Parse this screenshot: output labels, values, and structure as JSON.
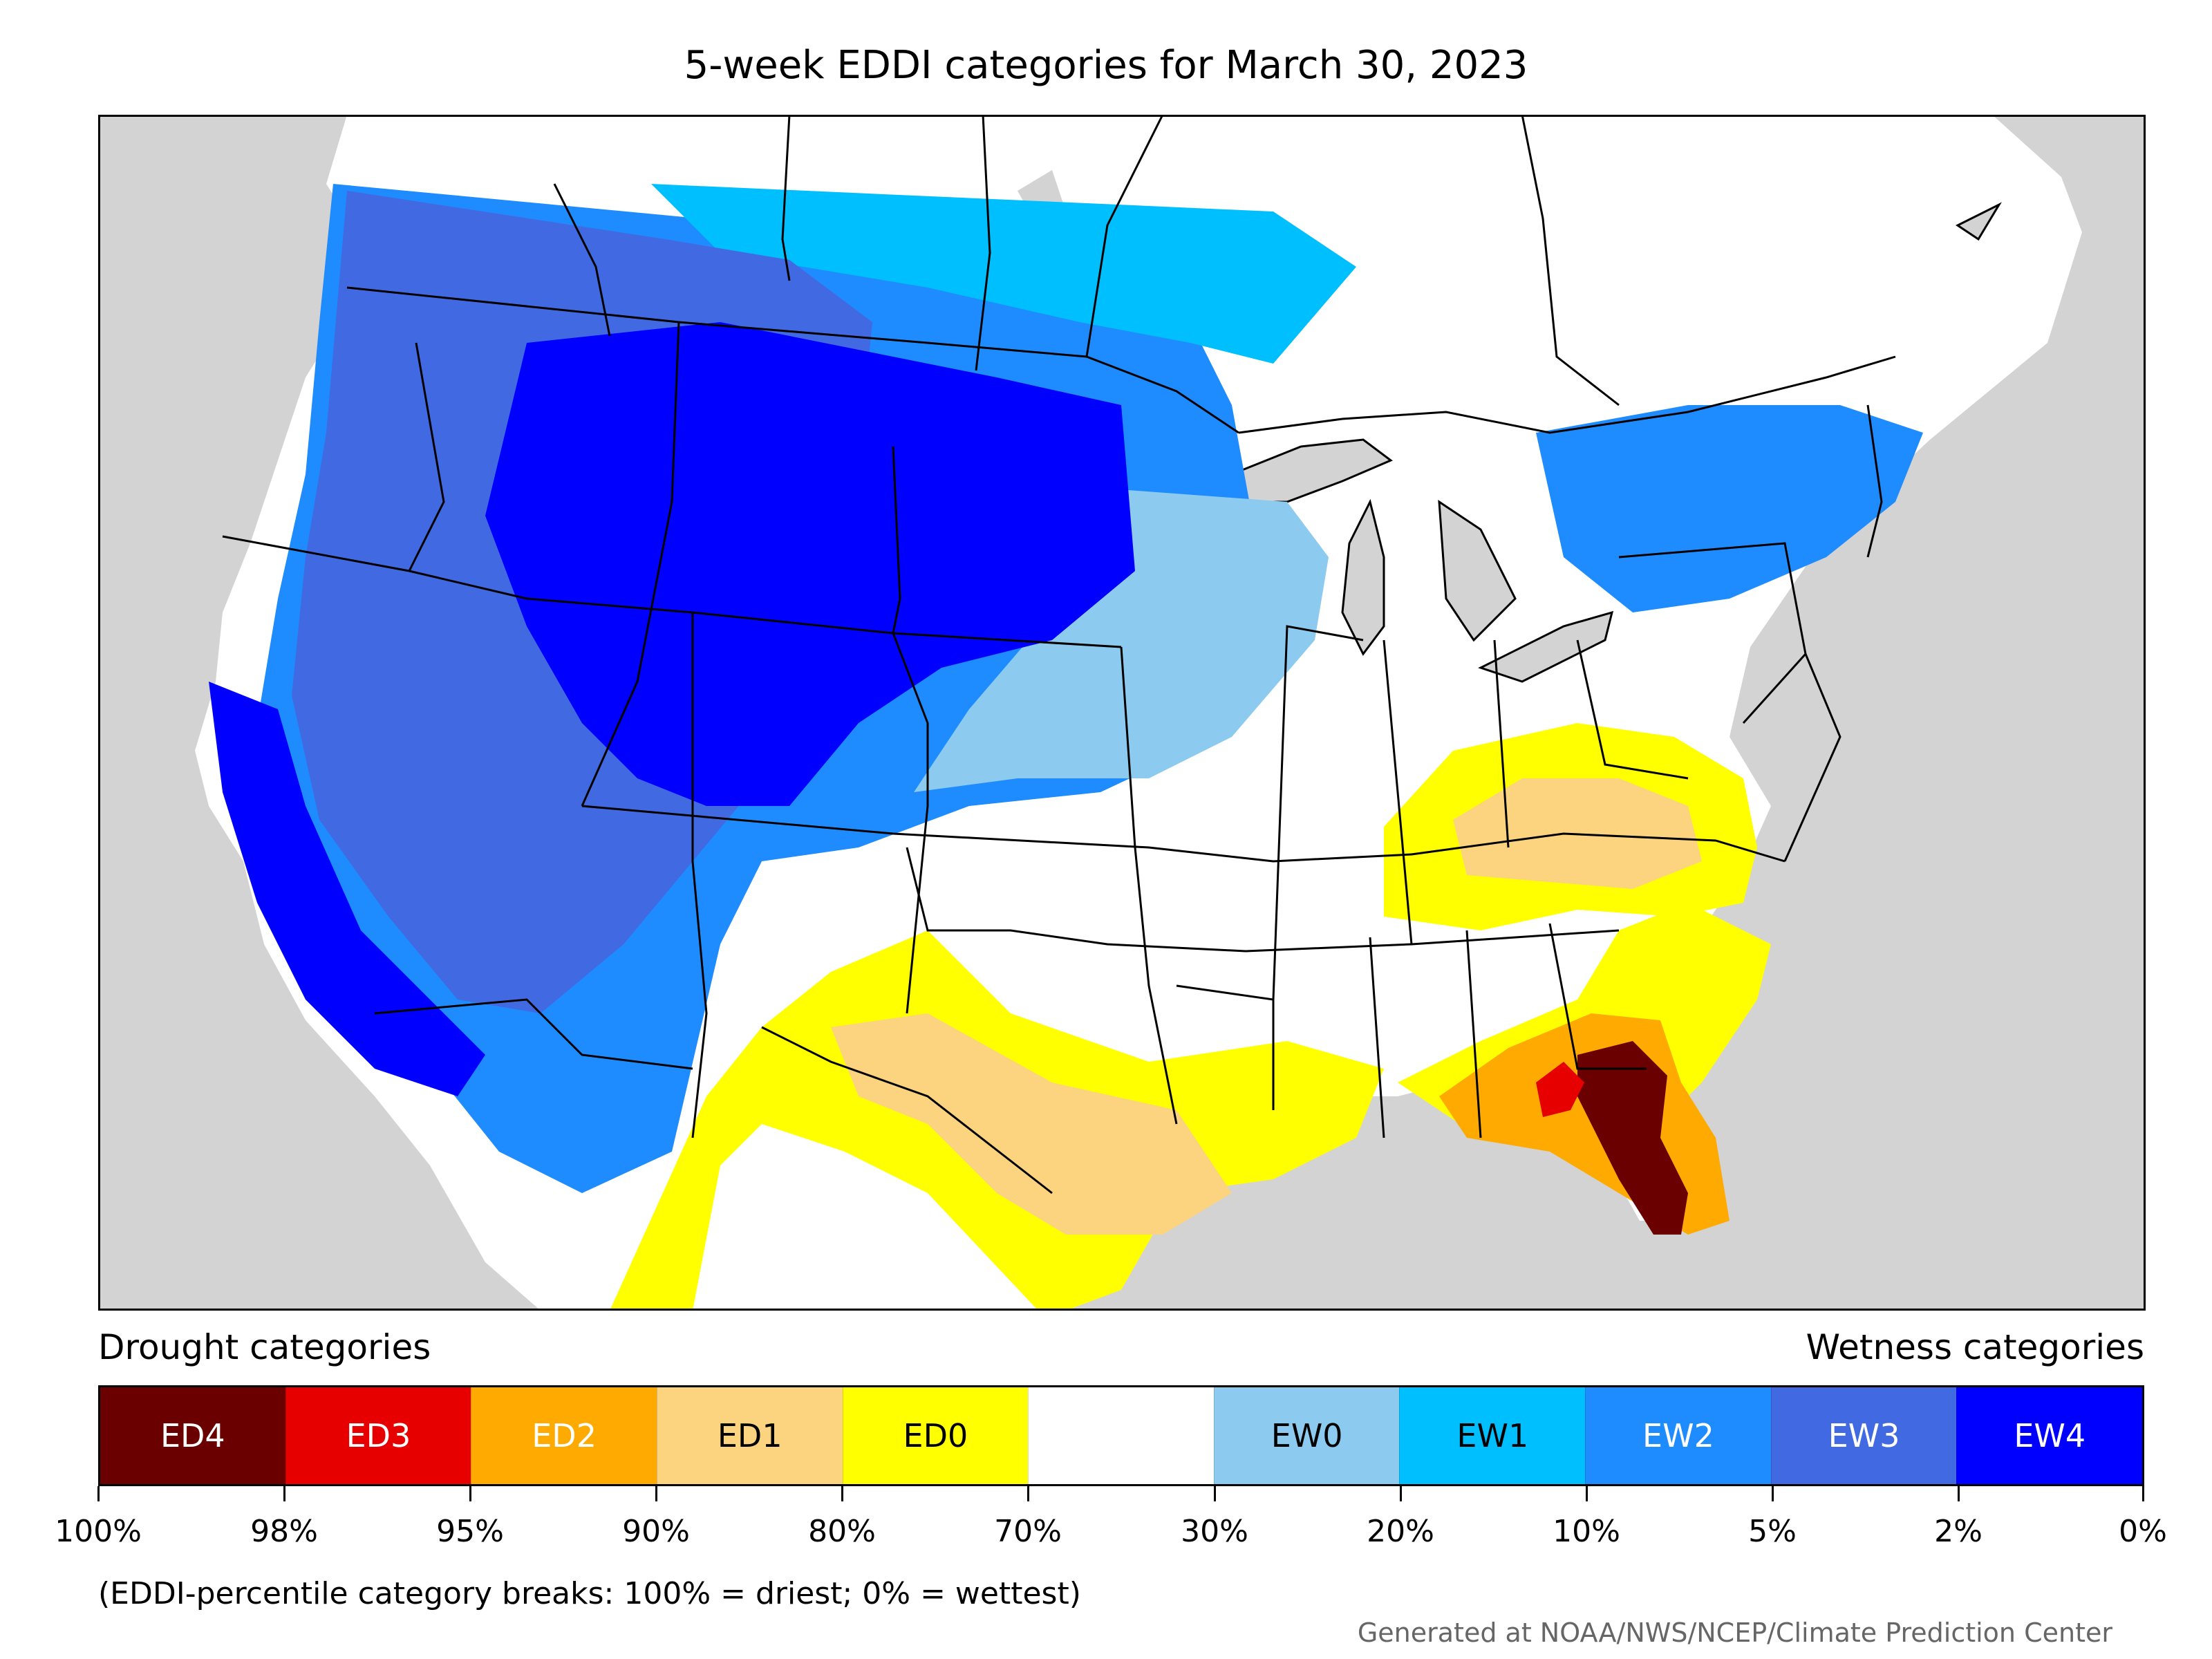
{
  "title": "5-week EDDI categories for March 30, 2023",
  "legend": {
    "left_heading": "Drought categories",
    "right_heading": "Wetness categories",
    "categories": [
      {
        "label": "ED4",
        "color": "#6b0000",
        "text_color": "#ffffff"
      },
      {
        "label": "ED3",
        "color": "#e60000",
        "text_color": "#ffffff"
      },
      {
        "label": "ED2",
        "color": "#ffaa00",
        "text_color": "#ffffff"
      },
      {
        "label": "ED1",
        "color": "#fcd37f",
        "text_color": "#000000"
      },
      {
        "label": "ED0",
        "color": "#ffff00",
        "text_color": "#000000"
      },
      {
        "label": "",
        "color": "#ffffff",
        "text_color": "#000000"
      },
      {
        "label": "EW0",
        "color": "#8ccbef",
        "text_color": "#000000"
      },
      {
        "label": "EW1",
        "color": "#00bfff",
        "text_color": "#000000"
      },
      {
        "label": "EW2",
        "color": "#1e8cff",
        "text_color": "#ffffff"
      },
      {
        "label": "EW3",
        "color": "#4169e1",
        "text_color": "#ffffff"
      },
      {
        "label": "EW4",
        "color": "#0000ff",
        "text_color": "#ffffff"
      }
    ],
    "tick_labels": [
      "100%",
      "98%",
      "95%",
      "90%",
      "80%",
      "70%",
      "30%",
      "20%",
      "10%",
      "5%",
      "2%",
      "0%"
    ]
  },
  "footnote": "(EDDI-percentile category breaks: 100% = driest; 0% = wettest)",
  "credit": "Generated at NOAA/NWS/NCEP/Climate Prediction Center",
  "map": {
    "ocean_color": "#d3d3d3",
    "land_color": "#ffffff",
    "border_color": "#000000",
    "regions": [
      {
        "name": "ew4-west",
        "category": "EW4"
      },
      {
        "name": "ew4-california",
        "category": "EW4"
      },
      {
        "name": "ew3-west",
        "category": "EW3"
      },
      {
        "name": "ew2-west",
        "category": "EW2"
      },
      {
        "name": "ew1-canada",
        "category": "EW1"
      },
      {
        "name": "ew0-plains",
        "category": "EW0"
      },
      {
        "name": "ew2-northeast",
        "category": "EW2"
      },
      {
        "name": "ed0-ohio-valley",
        "category": "ED0"
      },
      {
        "name": "ed1-ohio-valley",
        "category": "ED1"
      },
      {
        "name": "ed0-texas",
        "category": "ED0"
      },
      {
        "name": "ed1-texas",
        "category": "ED1"
      },
      {
        "name": "ed0-southeast",
        "category": "ED0"
      },
      {
        "name": "ed2-southeast",
        "category": "ED2"
      },
      {
        "name": "ed4-florida",
        "category": "ED4"
      },
      {
        "name": "ed3-florida",
        "category": "ED3"
      }
    ]
  }
}
